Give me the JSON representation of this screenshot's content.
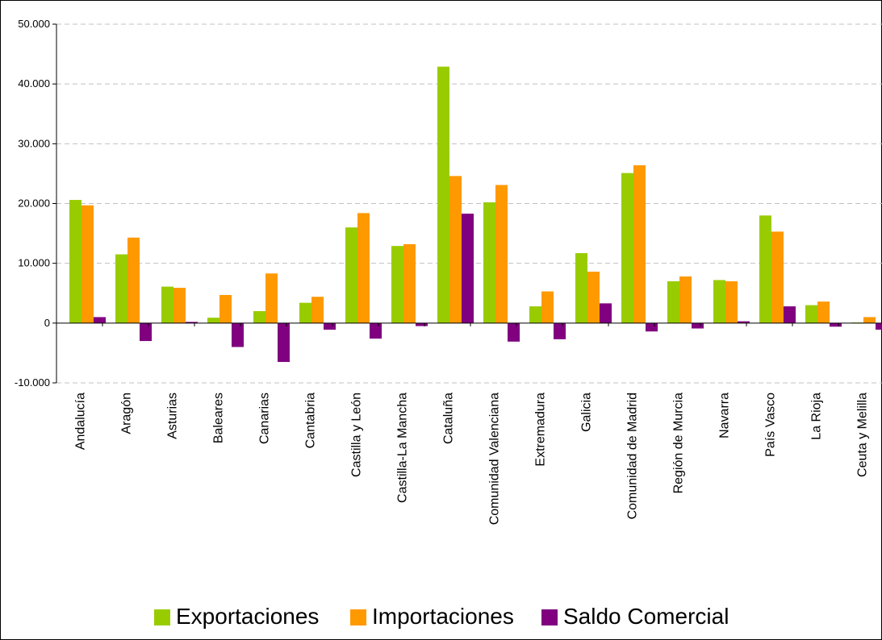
{
  "chart_data": {
    "type": "bar",
    "categories": [
      "Andalucía",
      "Aragón",
      "Asturias",
      "Baleares",
      "Canarias",
      "Cantabria",
      "Castilla y León",
      "Castilla-La Mancha",
      "Cataluña",
      "Comunidad Valenciana",
      "Extremadura",
      "Galicia",
      "Comunidad de Madrid",
      "Región de Murcia",
      "Navarra",
      "País Vasco",
      "La Rioja",
      "Ceuta y Melilla"
    ],
    "series": [
      {
        "name": "Exportaciones",
        "color": "#99cc00",
        "values": [
          20600,
          11500,
          6100,
          900,
          2000,
          3400,
          16000,
          12900,
          42900,
          20200,
          2800,
          11700,
          25100,
          7000,
          7200,
          18000,
          3000,
          100
        ]
      },
      {
        "name": "Importaciones",
        "color": "#ff9900",
        "values": [
          19700,
          14300,
          5900,
          4700,
          8300,
          4400,
          18400,
          13200,
          24600,
          23100,
          5300,
          8600,
          26400,
          7800,
          7000,
          15300,
          3600,
          1000
        ]
      },
      {
        "name": "Saldo Comercial",
        "color": "#800080",
        "values": [
          1000,
          -3000,
          200,
          -4000,
          -6500,
          -1100,
          -2600,
          -500,
          18300,
          -3100,
          -2700,
          3300,
          -1400,
          -900,
          300,
          2800,
          -600,
          -1100
        ]
      }
    ],
    "yticks": [
      "50.000",
      "40.000",
      "30.000",
      "20.000",
      "10.000",
      "0",
      "-10.000"
    ],
    "ylim": [
      -10000,
      50000
    ],
    "grid": true,
    "legend_position": "bottom"
  }
}
